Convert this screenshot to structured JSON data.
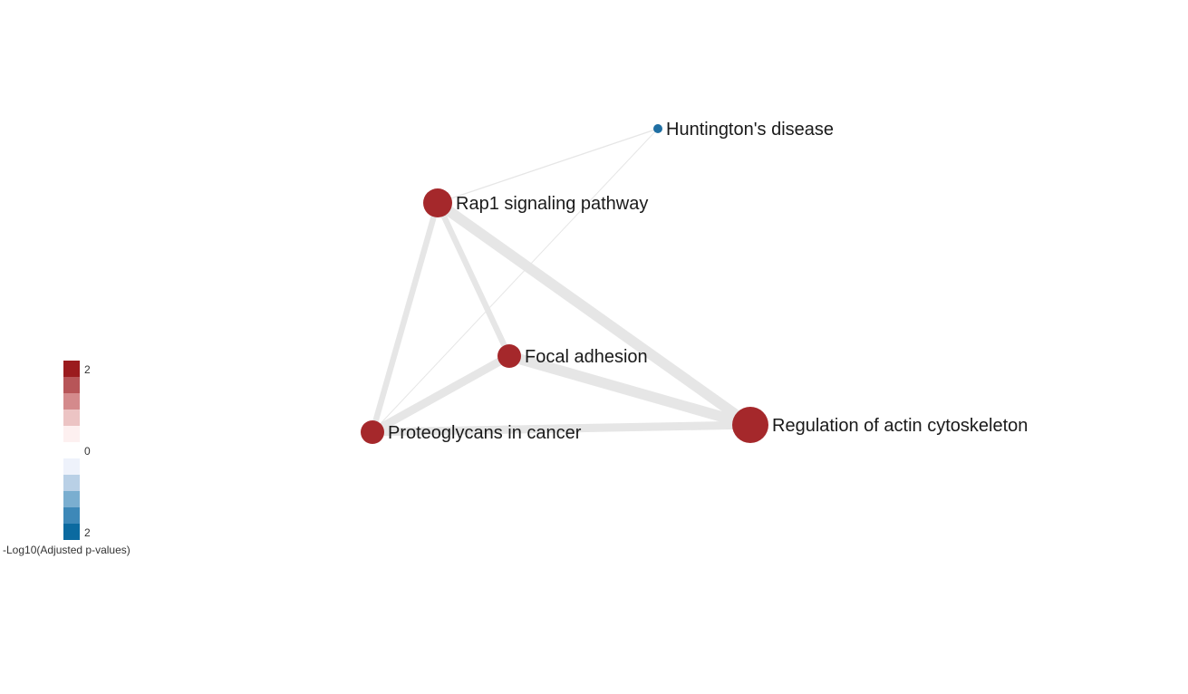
{
  "network": {
    "nodes": [
      {
        "id": "huntington",
        "label": "Huntington's disease",
        "color": "#1f6fa3",
        "size_level": 1
      },
      {
        "id": "rap1",
        "label": "Rap1 signaling pathway",
        "color": "#a5282b",
        "size_level": 3
      },
      {
        "id": "focal",
        "label": "Focal adhesion",
        "color": "#a5282b",
        "size_level": 2
      },
      {
        "id": "proteoglycans",
        "label": "Proteoglycans in cancer",
        "color": "#a5282b",
        "size_level": 2
      },
      {
        "id": "actin",
        "label": "Regulation of actin cytoskeleton",
        "color": "#a5282b",
        "size_level": 4
      }
    ],
    "edges": [
      {
        "source": "rap1",
        "target": "huntington",
        "weight": 1
      },
      {
        "source": "proteoglycans",
        "target": "huntington",
        "weight": 0.5
      },
      {
        "source": "rap1",
        "target": "focal",
        "weight": 5
      },
      {
        "source": "rap1",
        "target": "proteoglycans",
        "weight": 5
      },
      {
        "source": "rap1",
        "target": "actin",
        "weight": 9
      },
      {
        "source": "focal",
        "target": "proteoglycans",
        "weight": 7
      },
      {
        "source": "focal",
        "target": "actin",
        "weight": 9
      },
      {
        "source": "proteoglycans",
        "target": "actin",
        "weight": 7
      }
    ],
    "edge_color": "#e6e6e6"
  },
  "legend": {
    "title": "-Log10(Adjusted p-values)",
    "tick_top": "2",
    "tick_mid": "0",
    "tick_bottom": "2",
    "swatches": [
      "#9b1b1e",
      "#b75558",
      "#d48a8c",
      "#ecc4c4",
      "#fdf0f0",
      "#ffffff",
      "#eef2fb",
      "#b9d0e6",
      "#7aaed0",
      "#3d88b8",
      "#0b6aa0"
    ]
  }
}
